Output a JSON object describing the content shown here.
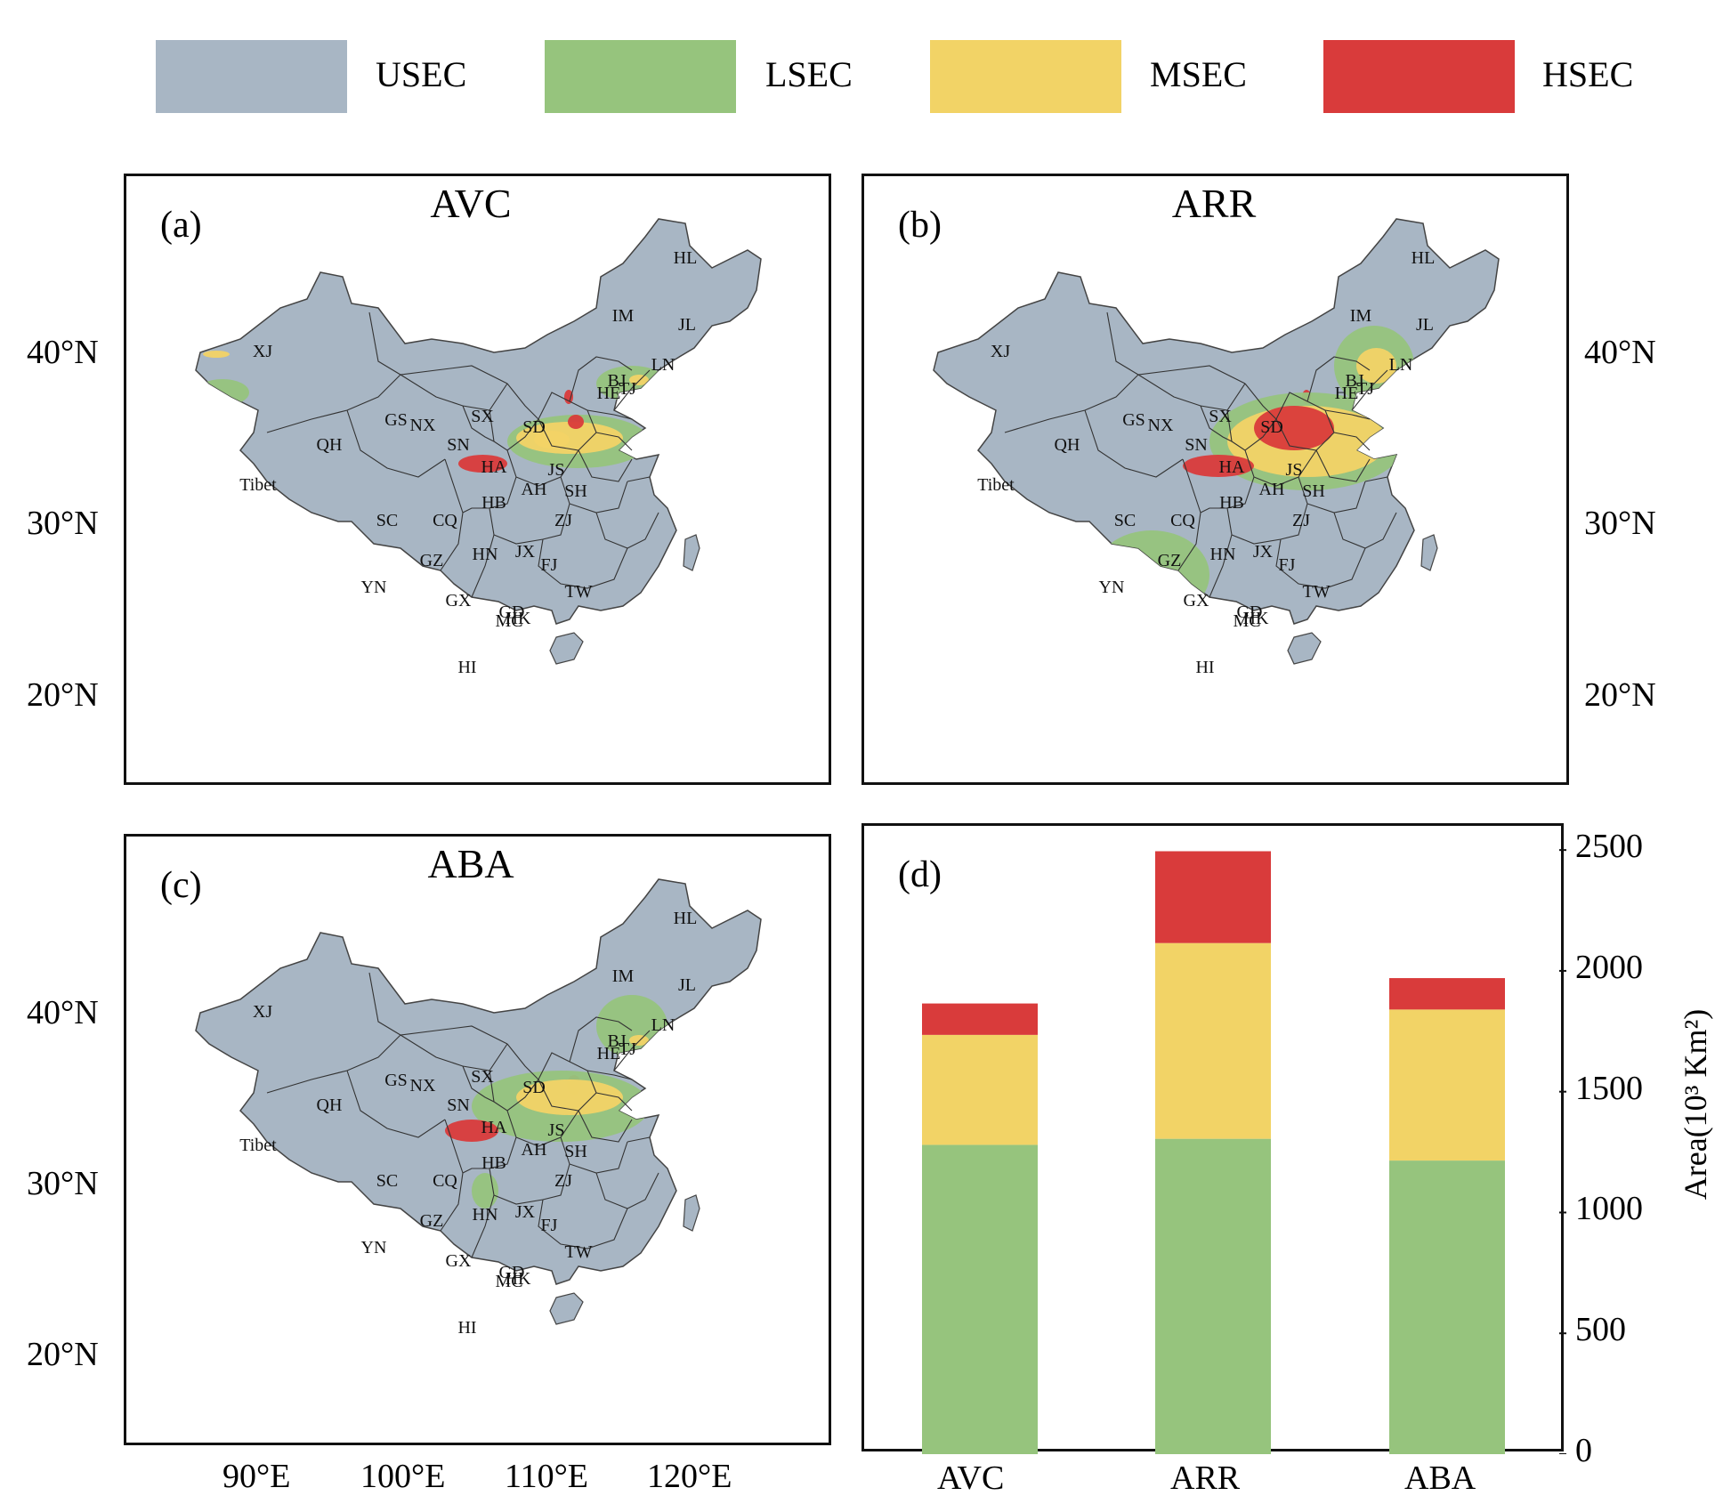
{
  "legend": [
    {
      "label": "USEC",
      "color": "#a8b6c4"
    },
    {
      "label": "LSEC",
      "color": "#96c47d"
    },
    {
      "label": "MSEC",
      "color": "#f2d366"
    },
    {
      "label": "HSEC",
      "color": "#d93b3b"
    }
  ],
  "maps": [
    {
      "letter": "(a)",
      "title": "AVC"
    },
    {
      "letter": "(b)",
      "title": "ARR"
    },
    {
      "letter": "(c)",
      "title": "ABA"
    }
  ],
  "province_labels": [
    "HL",
    "IM",
    "JL",
    "LN",
    "BJ",
    "TJ",
    "HE",
    "XJ",
    "GS",
    "NX",
    "SX",
    "SD",
    "SN",
    "HA",
    "QH",
    "Tibet",
    "JS",
    "AH",
    "SH",
    "HB",
    "SC",
    "CQ",
    "ZJ",
    "GZ",
    "HN",
    "JX",
    "FJ",
    "YN",
    "TW",
    "GX",
    "GD",
    "HK",
    "MC",
    "HI"
  ],
  "lat_labels": [
    "40°N",
    "30°N",
    "20°N"
  ],
  "lon_labels": [
    "90°E",
    "100°E",
    "110°E",
    "120°E"
  ],
  "bar_panel": {
    "letter": "(d)",
    "ylabel": "Area(10³ Km²)",
    "yticks": [
      "2500",
      "2000",
      "1500",
      "1000",
      "500",
      "0"
    ]
  },
  "chart_data": {
    "type": "bar",
    "stacked": true,
    "categories": [
      "AVC",
      "ARR",
      "ABA"
    ],
    "series": [
      {
        "name": "LSEC",
        "color": "#96c47d",
        "values": [
          1280,
          1305,
          1215
        ]
      },
      {
        "name": "MSEC",
        "color": "#f2d366",
        "values": [
          455,
          810,
          625
        ]
      },
      {
        "name": "HSEC",
        "color": "#d93b3b",
        "values": [
          130,
          380,
          130
        ]
      }
    ],
    "ylabel": "Area(10³ Km²)",
    "ylim": [
      0,
      2600
    ],
    "yticks": [
      0,
      500,
      1000,
      1500,
      2000,
      2500
    ]
  }
}
